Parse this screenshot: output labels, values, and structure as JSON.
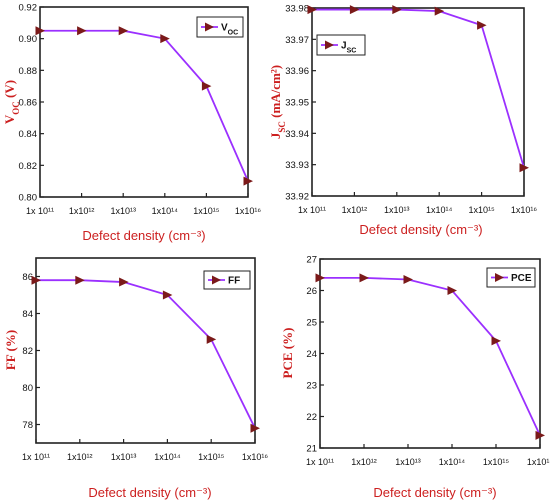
{
  "colors": {
    "line": "#9b30ff",
    "marker": "#7b1a1a",
    "label": "#cc1f1f"
  },
  "chart_data": [
    {
      "type": "line",
      "x": [
        "1x10^11",
        "1x10^12",
        "1x10^13",
        "1x10^14",
        "1x10^15",
        "1x10^16"
      ],
      "xtick_labels": [
        "1x 10¹¹",
        "1x10¹²",
        "1x10¹³",
        "1x10¹⁴",
        "1x10¹⁵",
        "1x10¹⁶"
      ],
      "xlabel": "Defect density (cm⁻³)",
      "ylabel": "VOC (V)",
      "ylabel_main": "V",
      "ylabel_sub": "OC",
      "ylabel_tail": " (V)",
      "ylim": [
        0.8,
        0.92
      ],
      "yticks": [
        0.8,
        0.82,
        0.84,
        0.86,
        0.88,
        0.9,
        0.92
      ],
      "ytick_labels": [
        "0.80",
        "0.82",
        "0.84",
        "0.86",
        "0.88",
        "0.90",
        "0.92"
      ],
      "series": [
        {
          "name": "VOC",
          "name_main": "V",
          "name_sub": "OC",
          "values": [
            0.905,
            0.905,
            0.905,
            0.9,
            0.87,
            0.81
          ]
        }
      ],
      "legend": "top-right",
      "grid": false
    },
    {
      "type": "line",
      "x": [
        "1x10^11",
        "1x10^12",
        "1x10^13",
        "1x10^14",
        "1x10^15",
        "1x10^16"
      ],
      "xtick_labels": [
        "1x 10¹¹",
        "1x10¹²",
        "1x10¹³",
        "1x10¹⁴",
        "1x10¹⁵",
        "1x10¹⁶"
      ],
      "xlabel": "Defect density (cm⁻³)",
      "ylabel": "JSC (mA/cm2)",
      "ylabel_main": "J",
      "ylabel_sub": "SC",
      "ylabel_tail": " (mA/cm²)",
      "ylim": [
        33.92,
        33.98
      ],
      "yticks": [
        33.92,
        33.93,
        33.94,
        33.95,
        33.96,
        33.97,
        33.98
      ],
      "ytick_labels": [
        "33.92",
        "33.93",
        "33.94",
        "33.95",
        "33.96",
        "33.97",
        "33.98"
      ],
      "series": [
        {
          "name": "JSC",
          "name_main": "J",
          "name_sub": "SC",
          "values": [
            33.9795,
            33.9795,
            33.9795,
            33.979,
            33.9745,
            33.929
          ]
        }
      ],
      "legend": "top-left",
      "grid": false
    },
    {
      "type": "line",
      "x": [
        "1x10^11",
        "1x10^12",
        "1x10^13",
        "1x10^14",
        "1x10^15",
        "1x10^16"
      ],
      "xtick_labels": [
        "1x 10¹¹",
        "1x10¹²",
        "1x10¹³",
        "1x10¹⁴",
        "1x10¹⁵",
        "1x10¹⁶"
      ],
      "xlabel": "Defect density (cm⁻³)",
      "ylabel": "FF (%)",
      "ylabel_main": "FF (%)",
      "ylabel_sub": "",
      "ylabel_tail": "",
      "ylim": [
        77,
        87
      ],
      "yticks": [
        78,
        80,
        82,
        84,
        86
      ],
      "ytick_labels": [
        "78",
        "80",
        "82",
        "84",
        "86"
      ],
      "series": [
        {
          "name": "FF",
          "name_main": "FF",
          "name_sub": "",
          "values": [
            85.8,
            85.8,
            85.7,
            85.0,
            82.6,
            77.8
          ]
        }
      ],
      "legend": "top-right",
      "grid": false
    },
    {
      "type": "line",
      "x": [
        "1x10^11",
        "1x10^12",
        "1x10^13",
        "1x10^14",
        "1x10^15",
        "1x10^16"
      ],
      "xtick_labels": [
        "1x 10¹¹",
        "1x10¹²",
        "1x10¹³",
        "1x10¹⁴",
        "1x10¹⁵",
        "1x10¹⁶"
      ],
      "xlabel": "Defect density (cm⁻³)",
      "ylabel": "PCE (%)",
      "ylabel_main": "PCE (%)",
      "ylabel_sub": "",
      "ylabel_tail": "",
      "ylim": [
        21,
        27
      ],
      "yticks": [
        21,
        22,
        23,
        24,
        25,
        26,
        27
      ],
      "ytick_labels": [
        "21",
        "22",
        "23",
        "24",
        "25",
        "26",
        "27"
      ],
      "series": [
        {
          "name": "PCE",
          "name_main": "PCE",
          "name_sub": "",
          "values": [
            26.4,
            26.4,
            26.35,
            26.0,
            24.4,
            21.4
          ]
        }
      ],
      "legend": "top-right",
      "grid": false
    }
  ]
}
